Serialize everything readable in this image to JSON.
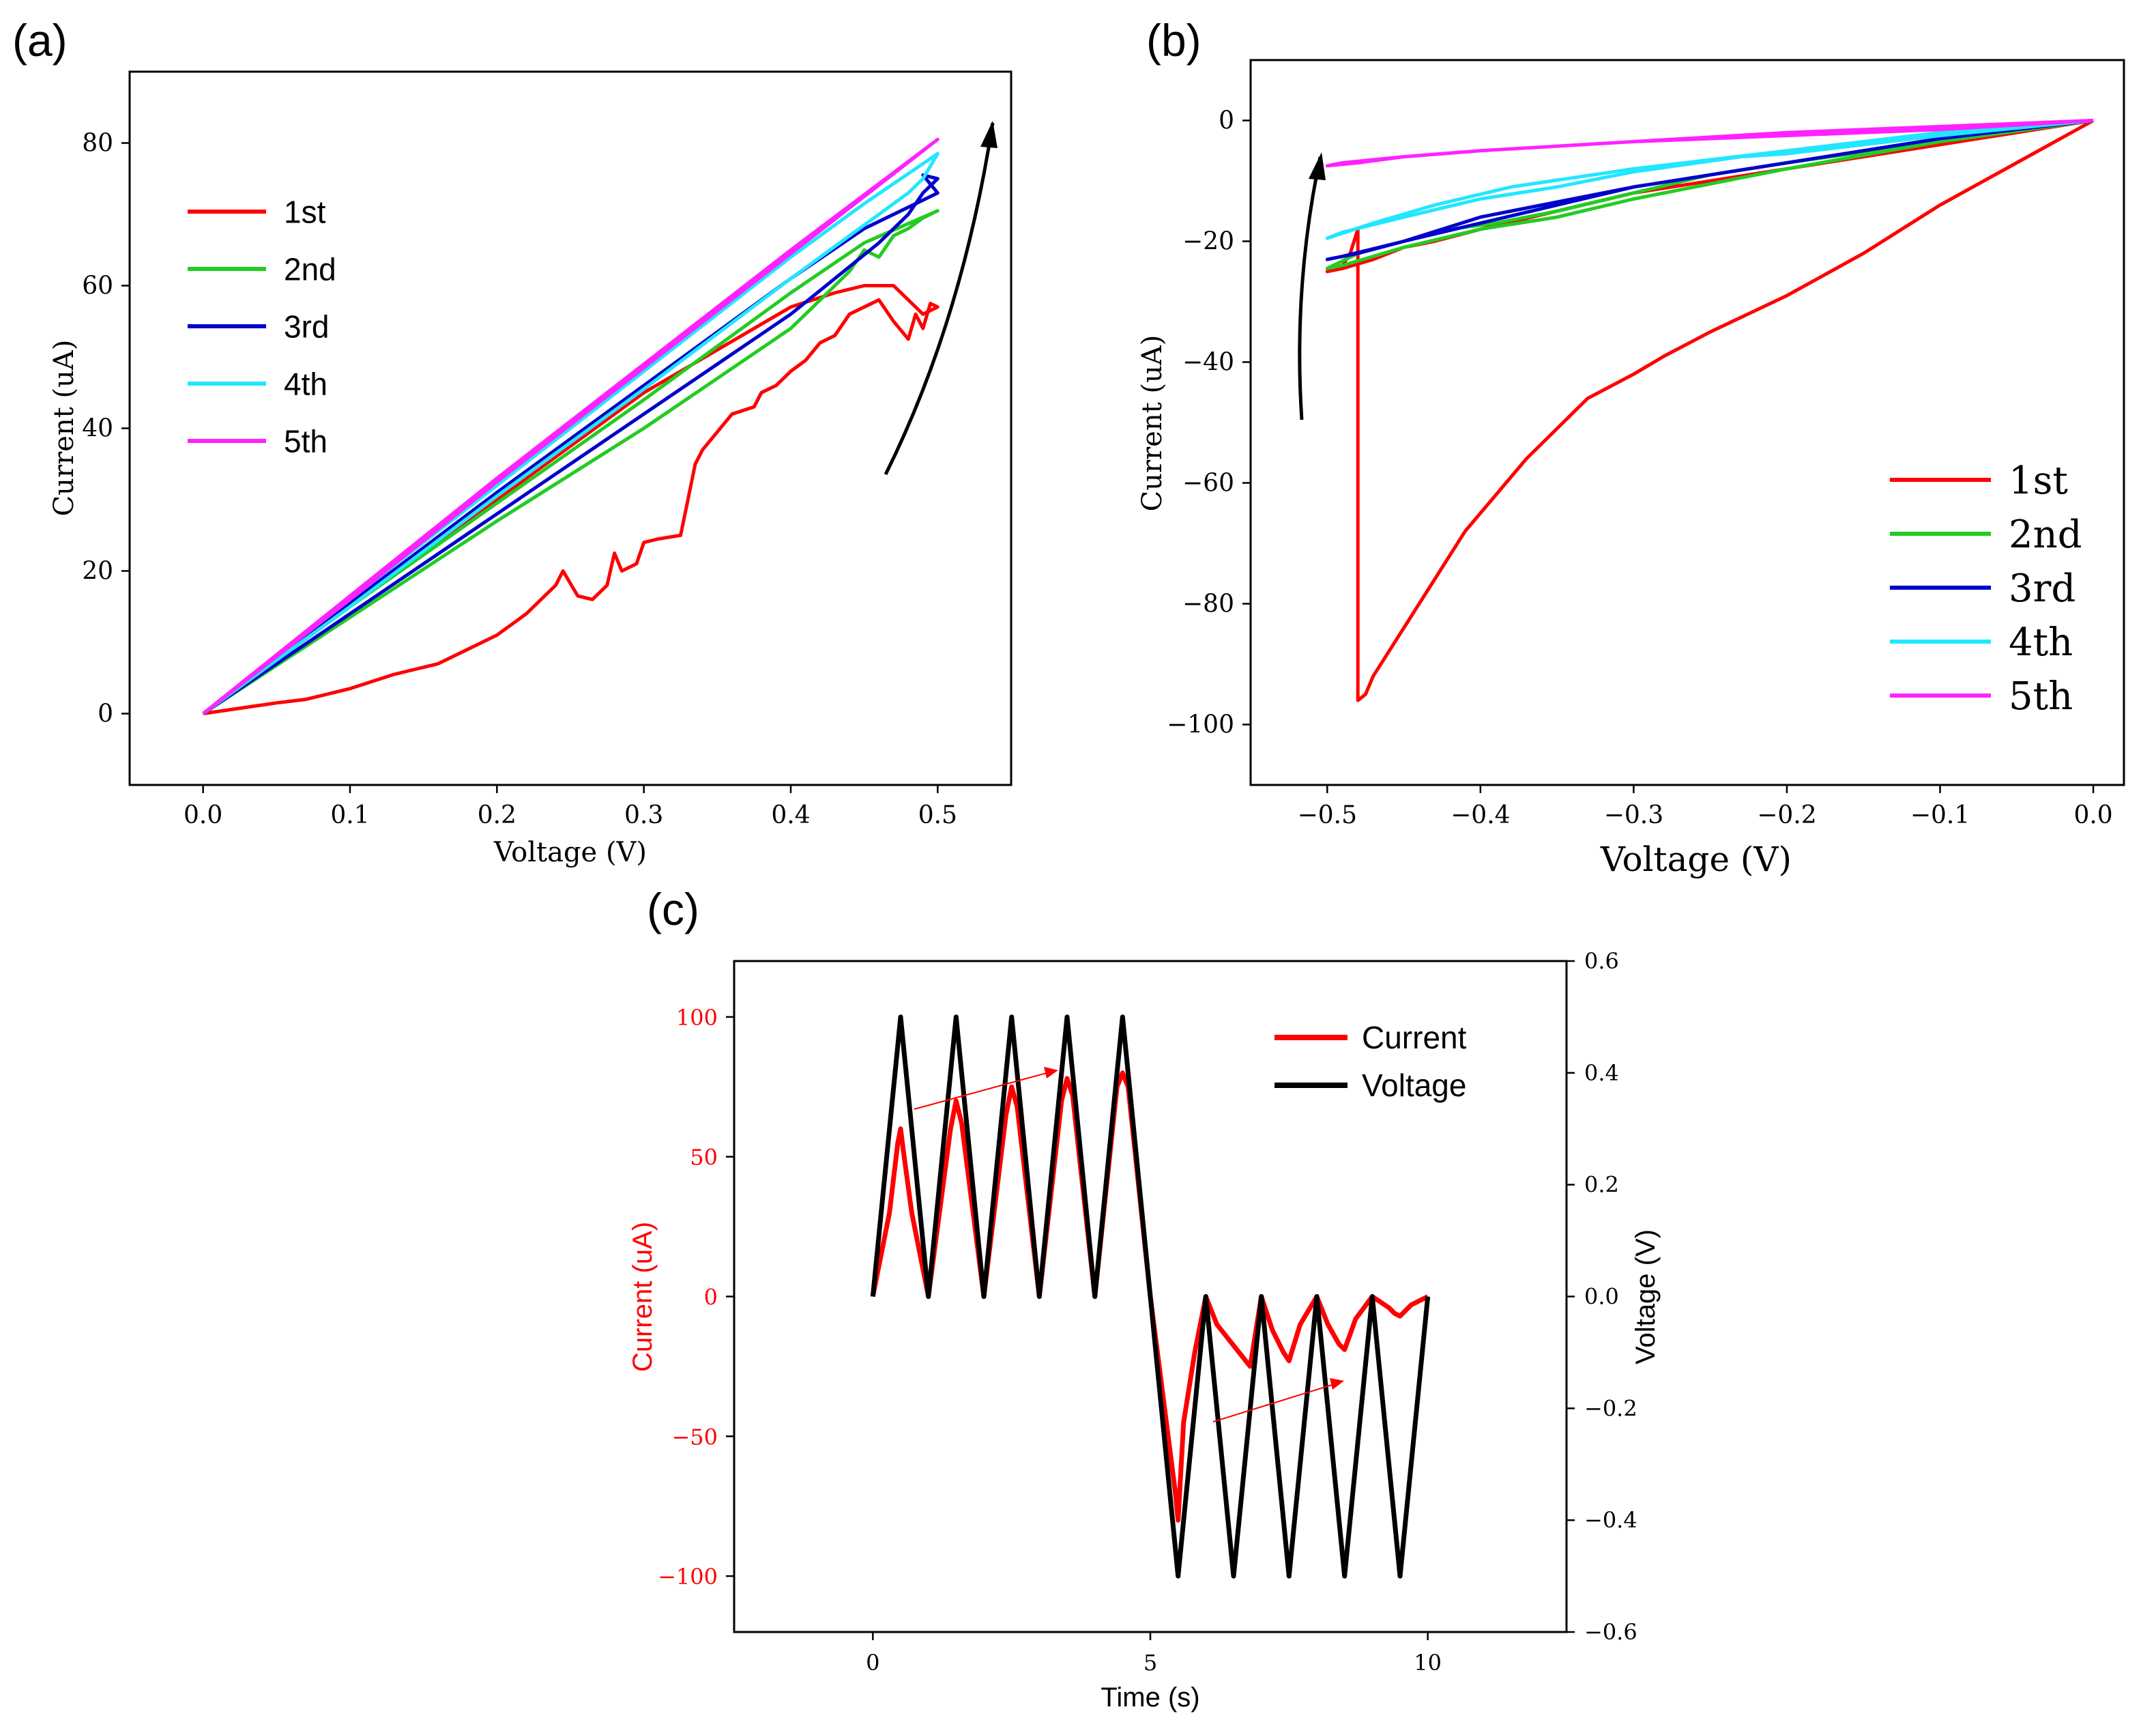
{
  "colors": {
    "s1": "#ff0000",
    "s2": "#22cc22",
    "s3": "#0000cc",
    "s4": "#22e6ff",
    "s5": "#ff22ff",
    "current": "#ff0000",
    "voltage": "#000000"
  },
  "chart_data": [
    {
      "panel": "(a)",
      "type": "line",
      "xlabel": "Voltage (V)",
      "ylabel": "Current (uA)",
      "xlim": [
        -0.05,
        0.55
      ],
      "ylim": [
        -10,
        90
      ],
      "xticks": [
        "0.0",
        "0.1",
        "0.2",
        "0.3",
        "0.4",
        "0.5"
      ],
      "yticks": [
        "0",
        "20",
        "40",
        "60",
        "80"
      ],
      "legend_position": "top-left",
      "annotation": "upward arrow near upper right",
      "series": [
        {
          "name": "1st",
          "color_key": "s1",
          "x": [
            0,
            0.05,
            0.07,
            0.1,
            0.13,
            0.16,
            0.2,
            0.22,
            0.24,
            0.245,
            0.255,
            0.265,
            0.275,
            0.28,
            0.285,
            0.295,
            0.3,
            0.31,
            0.325,
            0.33,
            0.335,
            0.34,
            0.36,
            0.375,
            0.38,
            0.39,
            0.4,
            0.41,
            0.42,
            0.43,
            0.44,
            0.45,
            0.46,
            0.47,
            0.48,
            0.485,
            0.49,
            0.495,
            0.5,
            0.49,
            0.48,
            0.47,
            0.45,
            0.43,
            0.4,
            0.35,
            0.3,
            0.2,
            0.1,
            0
          ],
          "y": [
            0,
            1.5,
            2,
            3.5,
            5.5,
            7,
            11,
            14,
            18,
            20,
            16.5,
            16,
            18,
            22.5,
            20,
            21,
            24,
            24.5,
            25,
            30,
            35,
            37,
            42,
            43,
            45,
            46,
            48,
            49.5,
            52,
            53,
            56,
            57,
            58,
            55,
            52.5,
            56,
            54,
            57.5,
            57,
            56,
            58,
            60,
            60,
            59,
            57,
            51,
            45,
            30,
            15,
            0
          ]
        },
        {
          "name": "2nd",
          "color_key": "s2",
          "x": [
            0,
            0.1,
            0.2,
            0.3,
            0.35,
            0.4,
            0.42,
            0.44,
            0.45,
            0.46,
            0.47,
            0.48,
            0.49,
            0.5,
            0.45,
            0.4,
            0.35,
            0.3,
            0.2,
            0.1,
            0
          ],
          "y": [
            0,
            13.5,
            27,
            40,
            47,
            54,
            58,
            62,
            65,
            64,
            67,
            68,
            69.5,
            70.5,
            66,
            59,
            51.5,
            44,
            29.5,
            15,
            0
          ]
        },
        {
          "name": "3rd",
          "color_key": "s3",
          "x": [
            0,
            0.1,
            0.2,
            0.3,
            0.35,
            0.4,
            0.43,
            0.46,
            0.48,
            0.49,
            0.5,
            0.49,
            0.5,
            0.45,
            0.4,
            0.3,
            0.2,
            0.1,
            0
          ],
          "y": [
            0,
            14,
            28,
            42,
            49,
            56,
            61,
            66,
            70,
            73,
            75,
            75.5,
            73,
            68,
            61,
            46,
            31,
            15.5,
            0
          ]
        },
        {
          "name": "4th",
          "color_key": "s4",
          "x": [
            0,
            0.1,
            0.2,
            0.3,
            0.4,
            0.45,
            0.48,
            0.49,
            0.5,
            0.45,
            0.4,
            0.3,
            0.2,
            0.1,
            0
          ],
          "y": [
            0,
            15,
            30.5,
            45.5,
            61,
            68.5,
            73,
            75,
            78.5,
            71.5,
            64,
            48,
            32,
            16,
            0
          ]
        },
        {
          "name": "5th",
          "color_key": "s5",
          "x": [
            0,
            0.1,
            0.2,
            0.3,
            0.4,
            0.5,
            0.4,
            0.3,
            0.2,
            0.1,
            0
          ],
          "y": [
            0,
            16,
            32.5,
            48.5,
            64.5,
            80.5,
            65,
            49,
            33,
            16.5,
            0
          ]
        }
      ]
    },
    {
      "panel": "(b)",
      "type": "line",
      "xlabel": "Voltage (V)",
      "ylabel": "Current (uA)",
      "xlim": [
        -0.55,
        0.02
      ],
      "ylim": [
        -110,
        10
      ],
      "xticks": [
        "−0.5",
        "−0.4",
        "−0.3",
        "−0.2",
        "−0.1",
        "0.0"
      ],
      "yticks": [
        "0",
        "−20",
        "−40",
        "−60",
        "−80",
        "−100"
      ],
      "legend_position": "bottom-right",
      "annotation": "upward arrow near upper left",
      "series": [
        {
          "name": "1st",
          "color_key": "s1",
          "x": [
            0,
            -0.05,
            -0.1,
            -0.15,
            -0.2,
            -0.25,
            -0.28,
            -0.3,
            -0.33,
            -0.35,
            -0.37,
            -0.39,
            -0.41,
            -0.43,
            -0.45,
            -0.46,
            -0.47,
            -0.475,
            -0.48,
            -0.48,
            -0.485,
            -0.49,
            -0.5,
            -0.49,
            -0.47,
            -0.45,
            -0.43,
            -0.4,
            -0.35,
            -0.3,
            -0.2,
            -0.1,
            0
          ],
          "y": [
            0,
            -7,
            -14,
            -22,
            -29,
            -35,
            -39,
            -42,
            -46,
            -51,
            -56,
            -62,
            -68,
            -76,
            -84,
            -88,
            -92,
            -95,
            -96,
            -18,
            -22,
            -24,
            -25,
            -24.5,
            -23,
            -21,
            -20,
            -18,
            -15,
            -12,
            -8,
            -4,
            0
          ]
        },
        {
          "name": "2nd",
          "color_key": "s2",
          "x": [
            0,
            -0.1,
            -0.2,
            -0.3,
            -0.35,
            -0.4,
            -0.45,
            -0.49,
            -0.5,
            -0.48,
            -0.45,
            -0.42,
            -0.39,
            -0.35,
            -0.3,
            -0.25,
            -0.2,
            -0.1,
            0
          ],
          "y": [
            0,
            -3.5,
            -8,
            -13,
            -16,
            -18,
            -21,
            -24,
            -24.5,
            -22,
            -20,
            -18,
            -17,
            -15,
            -12,
            -9,
            -7,
            -3.5,
            0
          ]
        },
        {
          "name": "3rd",
          "color_key": "s3",
          "x": [
            0,
            -0.1,
            -0.2,
            -0.3,
            -0.35,
            -0.4,
            -0.45,
            -0.49,
            -0.5,
            -0.48,
            -0.45,
            -0.4,
            -0.35,
            -0.3,
            -0.2,
            -0.1,
            0
          ],
          "y": [
            0,
            -3,
            -7,
            -11,
            -13.5,
            -16,
            -20,
            -22.5,
            -23,
            -22,
            -20,
            -17,
            -14,
            -11,
            -7,
            -3,
            0
          ]
        },
        {
          "name": "4th",
          "color_key": "s4",
          "x": [
            0,
            -0.1,
            -0.2,
            -0.23,
            -0.3,
            -0.35,
            -0.4,
            -0.45,
            -0.49,
            -0.5,
            -0.47,
            -0.43,
            -0.38,
            -0.3,
            -0.2,
            -0.1,
            0
          ],
          "y": [
            0,
            -2.5,
            -5.5,
            -6,
            -8.5,
            -11,
            -13,
            -16,
            -18.5,
            -19.5,
            -17,
            -14,
            -11,
            -8,
            -5,
            -2,
            0
          ]
        },
        {
          "name": "5th",
          "color_key": "s5",
          "x": [
            0,
            -0.1,
            -0.2,
            -0.3,
            -0.4,
            -0.45,
            -0.49,
            -0.5,
            -0.48,
            -0.45,
            -0.4,
            -0.3,
            -0.2,
            -0.1,
            0
          ],
          "y": [
            0,
            -1.5,
            -2.5,
            -3.5,
            -5,
            -6,
            -7,
            -7.5,
            -7,
            -6,
            -5,
            -3.5,
            -2,
            -1,
            0
          ]
        }
      ]
    },
    {
      "panel": "(c)",
      "type": "line",
      "xlabel": "Time (s)",
      "ylabel": "Current (uA)",
      "y2label": "Voltage (V)",
      "xlim": [
        -2.5,
        12.5
      ],
      "ylim": [
        -120,
        120
      ],
      "y2lim": [
        -0.6,
        0.6
      ],
      "xticks": [
        "0",
        "5",
        "10"
      ],
      "yticks": [
        "100",
        "50",
        "0",
        "−50",
        "−100"
      ],
      "y2ticks": [
        "0.6",
        "0.4",
        "0.2",
        "0.0",
        "−0.2",
        "−0.4",
        "−0.6"
      ],
      "legend_position": "top-right",
      "annotation": "two thin red trend arrows over peaks",
      "series": [
        {
          "name": "Current",
          "axis": "left",
          "color_key": "current",
          "x": [
            0,
            0.3,
            0.45,
            0.5,
            0.55,
            0.7,
            1,
            1.4,
            1.5,
            1.6,
            2,
            2.4,
            2.5,
            2.6,
            3,
            3.4,
            3.5,
            3.6,
            4,
            4.4,
            4.5,
            4.6,
            5,
            5.45,
            5.5,
            5.6,
            5.8,
            6,
            6.2,
            6.6,
            6.8,
            7,
            7.2,
            7.4,
            7.5,
            7.7,
            8,
            8.2,
            8.4,
            8.5,
            8.7,
            9,
            9.3,
            9.4,
            9.5,
            9.7,
            10
          ],
          "y": [
            0,
            30,
            55,
            60,
            52,
            30,
            0,
            60,
            70,
            62,
            0,
            65,
            75,
            68,
            0,
            70,
            78,
            72,
            0,
            75,
            80,
            75,
            0,
            -70,
            -80,
            -45,
            -20,
            0,
            -10,
            -20,
            -25,
            0,
            -12,
            -20,
            -23,
            -10,
            0,
            -10,
            -17,
            -19,
            -8,
            0,
            -4,
            -6,
            -7,
            -3,
            0
          ]
        },
        {
          "name": "Voltage",
          "axis": "right",
          "color_key": "voltage",
          "x": [
            0,
            0.5,
            1,
            1.5,
            2,
            2.5,
            3,
            3.5,
            4,
            4.5,
            5,
            5.5,
            6,
            6.5,
            7,
            7.5,
            8,
            8.5,
            9,
            9.5,
            10
          ],
          "y": [
            0,
            0.5,
            0,
            0.5,
            0,
            0.5,
            0,
            0.5,
            0,
            0.5,
            0,
            -0.5,
            0,
            -0.5,
            0,
            -0.5,
            0,
            -0.5,
            0,
            -0.5,
            0
          ]
        }
      ]
    }
  ]
}
